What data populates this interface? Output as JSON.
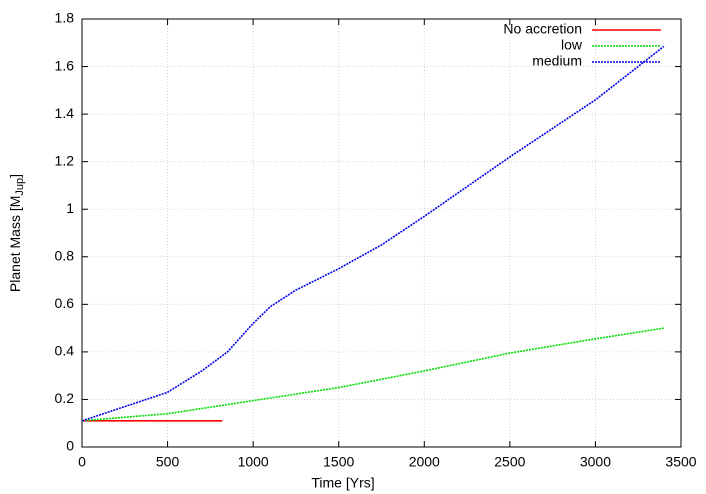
{
  "chart_data": {
    "type": "line",
    "xlabel": "Time [Yrs]",
    "ylabel": {
      "text": "Planet Mass [M",
      "sub": "Jup",
      "end": "]"
    },
    "xlim": [
      0,
      3500
    ],
    "xticks": [
      0,
      500,
      1000,
      1500,
      2000,
      2500,
      3000,
      3500
    ],
    "ylim": [
      0,
      1.8
    ],
    "yticks": [
      0,
      0.2,
      0.4,
      0.6,
      0.8,
      1,
      1.2,
      1.4,
      1.6,
      1.8
    ],
    "grid": true,
    "legend": "top-right",
    "series": [
      {
        "name": "No accretion",
        "color": "#ff0000",
        "style": "solid",
        "x": [
          0,
          820
        ],
        "values": [
          0.11,
          0.11
        ]
      },
      {
        "name": "low",
        "color": "#00dd00",
        "style": "dotted",
        "x": [
          0,
          500,
          1000,
          1500,
          2000,
          2500,
          3000,
          3400
        ],
        "values": [
          0.11,
          0.14,
          0.195,
          0.25,
          0.32,
          0.395,
          0.455,
          0.5
        ]
      },
      {
        "name": "medium",
        "color": "#0000ee",
        "style": "dotted",
        "x": [
          0,
          250,
          500,
          700,
          850,
          1000,
          1100,
          1250,
          1500,
          1750,
          2000,
          2500,
          3000,
          3400
        ],
        "values": [
          0.11,
          0.17,
          0.23,
          0.32,
          0.4,
          0.52,
          0.59,
          0.66,
          0.75,
          0.85,
          0.97,
          1.22,
          1.46,
          1.685
        ]
      }
    ]
  }
}
